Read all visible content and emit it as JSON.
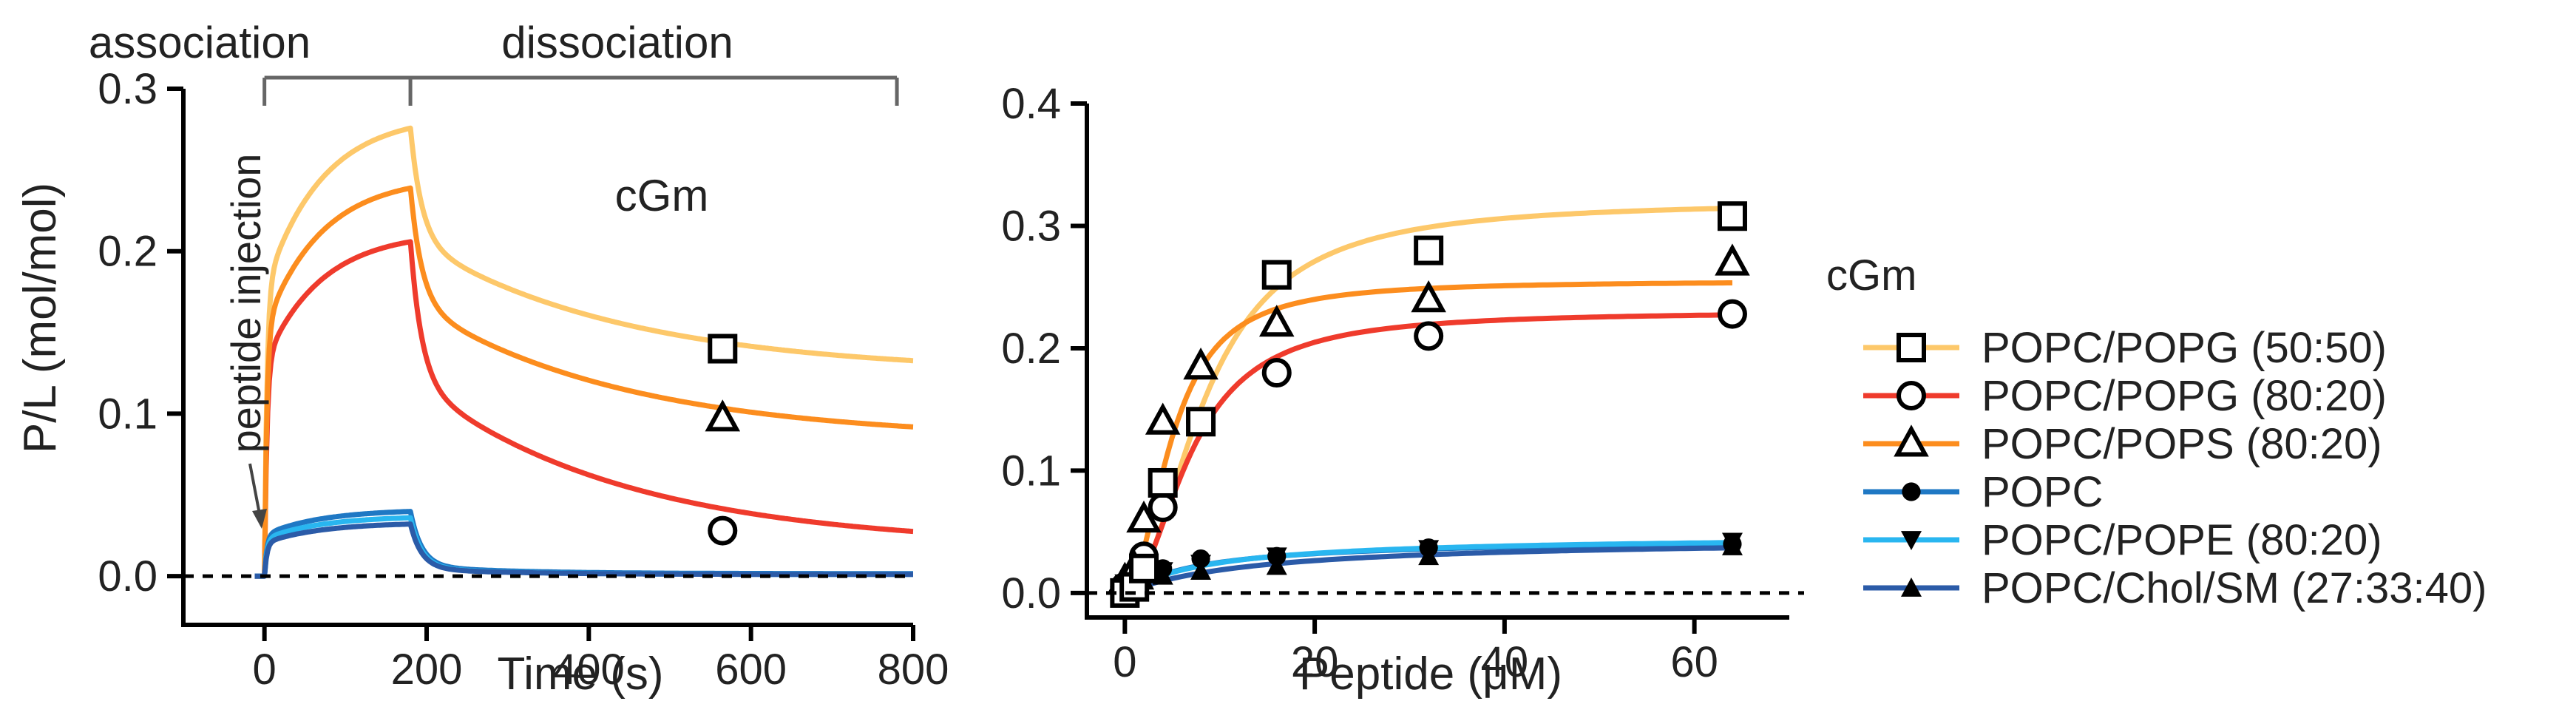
{
  "figure_title": "cGm",
  "colors": {
    "popg_50": "#fdc86a",
    "popg_80": "#ef3b2c",
    "pops_80": "#fc8d1e",
    "popc": "#1f78c4",
    "pope_80": "#29b6f0",
    "chol_sm": "#2b5ba8",
    "axis": "#000000",
    "bracket": "#666666"
  },
  "chart_data": [
    {
      "type": "line",
      "panel": "left",
      "title": "cGm",
      "xlabel": "Time (s)",
      "ylabel": "P/L (mol/mol)",
      "xlim": [
        -100,
        800
      ],
      "ylim": [
        -0.03,
        0.3
      ],
      "xticks": [
        0,
        200,
        400,
        600,
        800
      ],
      "xtick_labels": [
        "0",
        "200",
        "400",
        "600",
        "800"
      ],
      "yticks": [
        0,
        0.1,
        0.2,
        0.3
      ],
      "ytick_labels": [
        "0.0",
        "0.1",
        "0.2",
        "0.3"
      ],
      "grid": false,
      "phase_labels": {
        "association": "association",
        "dissociation": "dissociation"
      },
      "phases": {
        "association": [
          0,
          180
        ],
        "dissociation": [
          180,
          780
        ]
      },
      "annotation": "peptide injection",
      "baseline": 0,
      "injection_time": 0,
      "switch_time": 180,
      "series": [
        {
          "name": "POPC/POPG (50:50)",
          "color_key": "popg_50",
          "plateau": 0.284,
          "end": 0.125,
          "marker": "square-open",
          "marker_x": 565,
          "marker_y": 0.14
        },
        {
          "name": "POPC/POPG (80:20)",
          "color_key": "popg_80",
          "plateau": 0.212,
          "end": 0.018,
          "marker": "circle-open",
          "marker_x": 565,
          "marker_y": 0.028
        },
        {
          "name": "POPC/POPS (80:20)",
          "color_key": "pops_80",
          "plateau": 0.246,
          "end": 0.084,
          "marker": "triangle-open",
          "marker_x": 565,
          "marker_y": 0.097
        },
        {
          "name": "POPC",
          "color_key": "popc",
          "plateau": 0.041,
          "end": 0.0015,
          "marker": "circle-filled",
          "marker_x": null,
          "marker_y": null
        },
        {
          "name": "POPC/POPE (80:20)",
          "color_key": "pope_80",
          "plateau": 0.037,
          "end": 0.001,
          "marker": "triangle-down-filled",
          "marker_x": null,
          "marker_y": null
        },
        {
          "name": "POPC/Chol/SM (27:33:40)",
          "color_key": "chol_sm",
          "plateau": 0.033,
          "end": 0.001,
          "marker": "triangle-filled",
          "marker_x": null,
          "marker_y": null
        }
      ]
    },
    {
      "type": "scatter",
      "panel": "right",
      "title": "",
      "xlabel": "Peptide (μM)",
      "ylabel": "",
      "xlim": [
        -4,
        70
      ],
      "ylim": [
        -0.02,
        0.4
      ],
      "xticks": [
        0,
        20,
        40,
        60
      ],
      "xtick_labels": [
        "0",
        "20",
        "40",
        "60"
      ],
      "yticks": [
        0,
        0.1,
        0.2,
        0.3,
        0.4
      ],
      "ytick_labels": [
        "0.0",
        "0.1",
        "0.2",
        "0.3",
        "0.4"
      ],
      "grid": false,
      "baseline": 0,
      "legend_position": "right",
      "legend_title": "cGm",
      "series": [
        {
          "name": "POPC/POPG (50:50)",
          "color_key": "popg_50",
          "marker": "square-open",
          "x": [
            0,
            1,
            2,
            4,
            8,
            16,
            32,
            64
          ],
          "y": [
            0.0,
            0.005,
            0.02,
            0.09,
            0.14,
            0.26,
            0.28,
            0.308
          ],
          "fit": {
            "pmax": 0.32,
            "k50": 8.5,
            "n": 2.0
          }
        },
        {
          "name": "POPC/POPG (80:20)",
          "color_key": "popg_80",
          "marker": "circle-open",
          "x": [
            0,
            1,
            2,
            4,
            8,
            16,
            32,
            64
          ],
          "y": [
            0.005,
            0.01,
            0.03,
            0.07,
            0.14,
            0.18,
            0.21,
            0.228
          ],
          "fit": {
            "pmax": 0.23,
            "k50": 7.0,
            "n": 2.0
          }
        },
        {
          "name": "POPC/POPS (80:20)",
          "color_key": "pops_80",
          "marker": "triangle-open",
          "x": [
            0,
            1,
            2,
            4,
            8,
            16,
            32,
            64
          ],
          "y": [
            0.01,
            0.02,
            0.06,
            0.14,
            0.185,
            0.22,
            0.24,
            0.27
          ],
          "fit": {
            "pmax": 0.255,
            "k50": 5.0,
            "n": 2.0
          }
        },
        {
          "name": "POPC",
          "color_key": "popc",
          "marker": "circle-filled",
          "x": [
            0,
            1,
            2,
            4,
            8,
            16,
            32,
            64
          ],
          "y": [
            0.01,
            0.012,
            0.015,
            0.02,
            0.028,
            0.03,
            0.037,
            0.04
          ],
          "fit": {
            "pmax": 0.045,
            "k50": 8.0,
            "n": 1.0
          }
        },
        {
          "name": "POPC/POPE (80:20)",
          "color_key": "pope_80",
          "marker": "triangle-down-filled",
          "x": [
            0,
            1,
            2,
            4,
            8,
            16,
            32,
            64
          ],
          "y": [
            0.008,
            0.01,
            0.013,
            0.018,
            0.024,
            0.03,
            0.036,
            0.042
          ],
          "fit": {
            "pmax": 0.047,
            "k50": 9.0,
            "n": 1.0
          }
        },
        {
          "name": "POPC/Chol/SM (27:33:40)",
          "color_key": "chol_sm",
          "marker": "triangle-filled",
          "x": [
            0,
            1,
            2,
            4,
            8,
            16,
            32,
            64
          ],
          "y": [
            0.005,
            0.007,
            0.01,
            0.014,
            0.018,
            0.022,
            0.03,
            0.038
          ],
          "fit": {
            "pmax": 0.045,
            "k50": 14.0,
            "n": 1.0
          }
        }
      ]
    }
  ]
}
